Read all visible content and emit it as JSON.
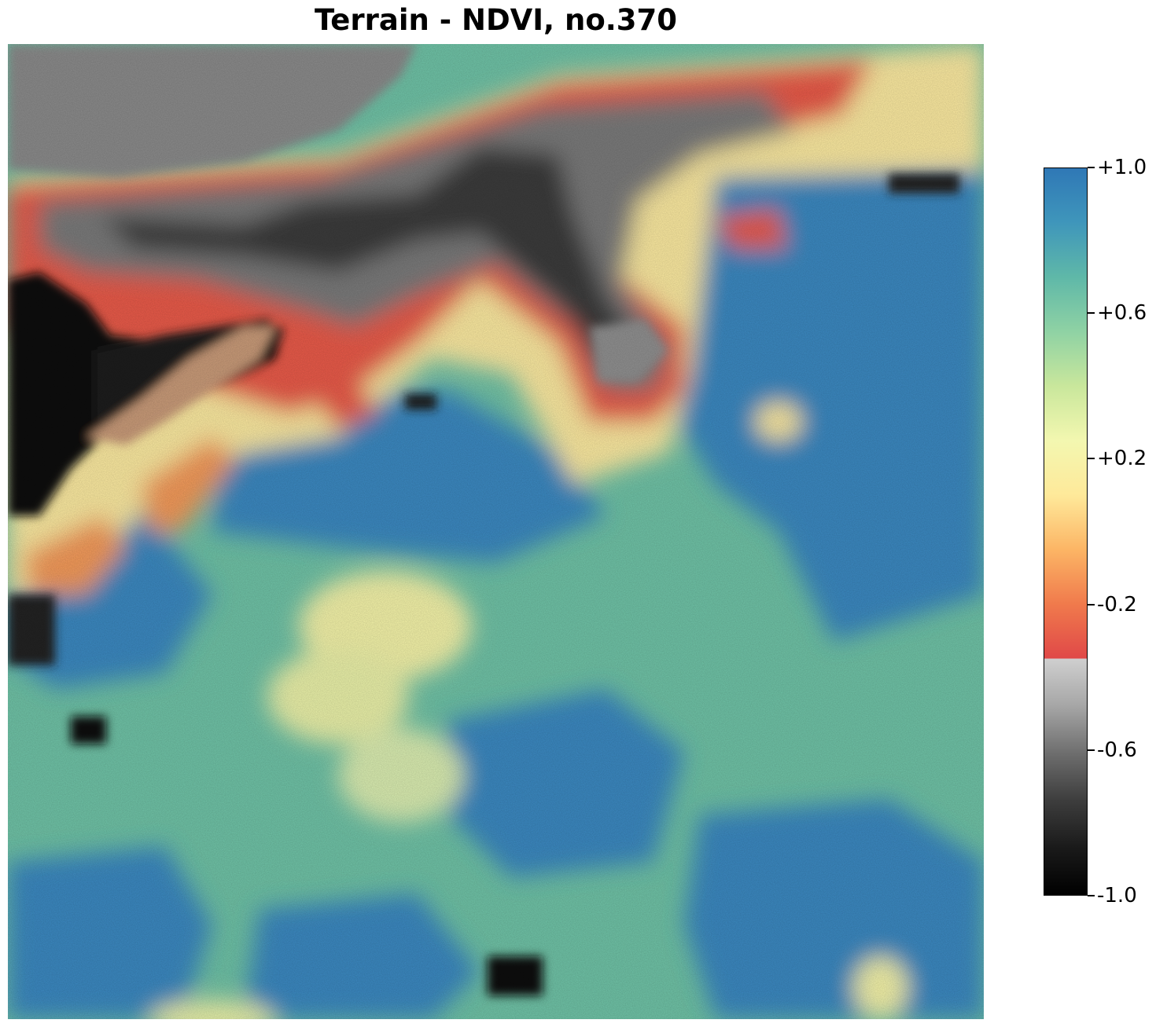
{
  "title": "Terrain - NDVI, no.370",
  "colorbar": {
    "range": [
      -1.0,
      1.0
    ],
    "ticks": [
      {
        "value": 1.0,
        "label": "+1.0"
      },
      {
        "value": 0.6,
        "label": "+0.6"
      },
      {
        "value": 0.2,
        "label": "+0.2"
      },
      {
        "value": -0.2,
        "label": "-0.2"
      },
      {
        "value": -0.6,
        "label": "-0.6"
      },
      {
        "value": -1.0,
        "label": "-1.0"
      }
    ],
    "negative_colors": [
      "#000000",
      "#1a1a1a",
      "#3d3d3d",
      "#6e6e6e",
      "#a6a6a6",
      "#cfcfcf"
    ],
    "positive_colors": [
      "#e04848",
      "#f07a4c",
      "#fcb565",
      "#fee99a",
      "#f3f7b0",
      "#c9e79c",
      "#8fd2a4",
      "#5fb8a8",
      "#3f96bb",
      "#2f78b6"
    ],
    "split_value": -0.35
  },
  "map_palette": {
    "water_black": "#0a0a0a",
    "dark_gray": "#3a3a3a",
    "gray": "#8a8a8a",
    "red": "#e85a4a",
    "orange": "#f39a5a",
    "yellow": "#fbe9a0",
    "pale_green": "#c8e5a0",
    "teal": "#6fc2a6",
    "blue": "#3a88c0"
  }
}
